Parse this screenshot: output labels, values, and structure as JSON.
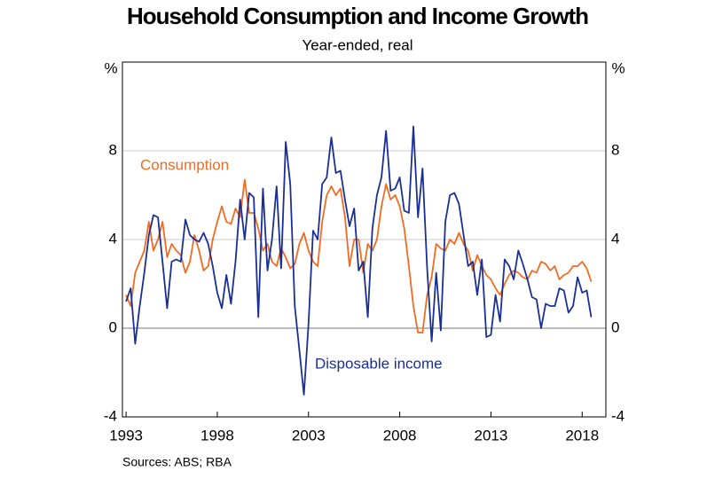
{
  "chart_data": {
    "type": "line",
    "title": "Household Consumption and Income Growth",
    "subtitle": "Year-ended, real",
    "y_unit": "%",
    "source": "Sources: ABS; RBA",
    "xlim": [
      1992.8,
      2019.3
    ],
    "xticks": [
      1993,
      1998,
      2003,
      2008,
      2013,
      2018
    ],
    "ylim": [
      -4,
      12
    ],
    "yticks": [
      -4,
      0,
      4,
      8
    ],
    "grid": true,
    "x": [
      1993,
      1993.25,
      1993.5,
      1993.75,
      1994,
      1994.25,
      1994.5,
      1994.75,
      1995,
      1995.25,
      1995.5,
      1995.75,
      1996,
      1996.25,
      1996.5,
      1996.75,
      1997,
      1997.25,
      1997.5,
      1997.75,
      1998,
      1998.25,
      1998.5,
      1998.75,
      1999,
      1999.25,
      1999.5,
      1999.75,
      2000,
      2000.25,
      2000.5,
      2000.75,
      2001,
      2001.25,
      2001.5,
      2001.75,
      2002,
      2002.25,
      2002.5,
      2002.75,
      2003,
      2003.25,
      2003.5,
      2003.75,
      2004,
      2004.25,
      2004.5,
      2004.75,
      2005,
      2005.25,
      2005.5,
      2005.75,
      2006,
      2006.25,
      2006.5,
      2006.75,
      2007,
      2007.25,
      2007.5,
      2007.75,
      2008,
      2008.25,
      2008.5,
      2008.75,
      2009,
      2009.25,
      2009.5,
      2009.75,
      2010,
      2010.25,
      2010.5,
      2010.75,
      2011,
      2011.25,
      2011.5,
      2011.75,
      2012,
      2012.25,
      2012.5,
      2012.75,
      2013,
      2013.25,
      2013.5,
      2013.75,
      2014,
      2014.25,
      2014.5,
      2014.75,
      2015,
      2015.25,
      2015.5,
      2015.75,
      2016,
      2016.25,
      2016.5,
      2016.75,
      2017,
      2017.25,
      2017.5,
      2017.75,
      2018,
      2018.25,
      2018.5
    ],
    "series": [
      {
        "name": "Consumption",
        "color": "#f26b21",
        "values": [
          1.5,
          1.0,
          2.5,
          3.0,
          3.5,
          4.8,
          3.5,
          4.0,
          4.8,
          3.2,
          3.8,
          3.5,
          3.3,
          2.5,
          3.0,
          4.2,
          3.5,
          2.6,
          2.8,
          4.0,
          4.8,
          5.5,
          4.8,
          4.7,
          5.4,
          5.0,
          6.7,
          5.2,
          5.2,
          4.5,
          3.5,
          3.8,
          3.0,
          2.8,
          3.6,
          3.2,
          2.7,
          2.9,
          3.8,
          4.3,
          3.5,
          3.0,
          2.8,
          4.8,
          6.0,
          6.4,
          6.0,
          6.3,
          5.0,
          2.8,
          4.0,
          4.0,
          2.5,
          3.8,
          3.5,
          4.0,
          5.5,
          6.5,
          5.8,
          6.0,
          5.5,
          4.5,
          2.8,
          1.0,
          -0.2,
          -0.2,
          1.5,
          2.3,
          3.8,
          3.6,
          3.5,
          4.0,
          3.8,
          4.3,
          3.8,
          3.5,
          2.6,
          3.3,
          2.8,
          2.4,
          2.2,
          1.8,
          1.5,
          2.0,
          2.4,
          2.6,
          2.5,
          2.3,
          2.2,
          2.6,
          2.5,
          3.0,
          2.9,
          2.6,
          2.8,
          2.2,
          2.4,
          2.5,
          2.8,
          2.8,
          3.0,
          2.7,
          2.1
        ]
      },
      {
        "name": "Disposable income",
        "color": "#1a2f96",
        "values": [
          1.2,
          1.8,
          -0.7,
          1.0,
          2.5,
          4.2,
          5.1,
          5.0,
          3.0,
          0.9,
          3.0,
          3.1,
          3.0,
          4.9,
          4.2,
          4.0,
          3.9,
          4.3,
          3.8,
          2.8,
          1.6,
          0.9,
          2.4,
          1.1,
          3.0,
          5.8,
          4.0,
          6.1,
          5.9,
          0.5,
          6.3,
          2.6,
          4.0,
          6.4,
          2.7,
          8.4,
          6.5,
          1.0,
          -1.0,
          -3.0,
          0.2,
          4.4,
          4.0,
          6.5,
          6.8,
          8.6,
          7.0,
          7.1,
          5.8,
          4.6,
          5.4,
          2.6,
          3.0,
          0.5,
          4.5,
          6.0,
          6.8,
          8.9,
          6.2,
          6.3,
          6.8,
          5.3,
          5.2,
          9.1,
          5.0,
          7.2,
          2.7,
          -0.6,
          2.5,
          -0.1,
          4.8,
          6.0,
          6.1,
          5.6,
          4.2,
          2.8,
          3.0,
          1.5,
          3.1,
          -0.4,
          -0.3,
          1.5,
          0.3,
          3.1,
          2.8,
          2.2,
          3.5,
          2.9,
          2.2,
          1.4,
          1.3,
          0.0,
          1.1,
          1.0,
          1.0,
          1.8,
          1.7,
          0.7,
          1.0,
          2.3,
          1.6,
          1.7,
          0.5
        ]
      }
    ]
  }
}
